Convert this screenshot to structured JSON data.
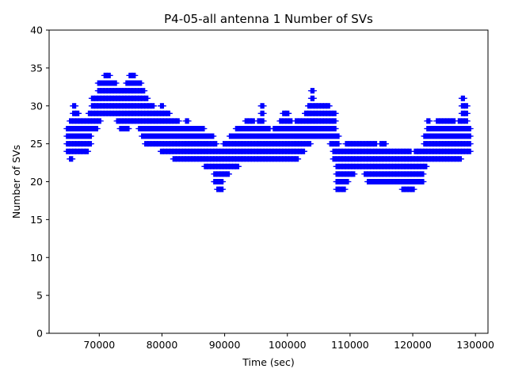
{
  "chart_data": {
    "type": "scatter",
    "title": "P4-05-all antenna 1 Number of SVs",
    "xlabel": "Time (sec)",
    "ylabel": "Number of SVs",
    "xlim": [
      62000,
      132000
    ],
    "ylim": [
      0,
      40
    ],
    "xticks": [
      70000,
      80000,
      90000,
      100000,
      110000,
      120000,
      130000
    ],
    "yticks": [
      0,
      5,
      10,
      15,
      20,
      25,
      30,
      35,
      40
    ],
    "grid": false,
    "marker": "+",
    "color": "#0000ff",
    "series": [
      {
        "x": [
          65000,
          65500,
          66000,
          66500,
          67000,
          67500,
          68000,
          68500,
          69000,
          69500,
          70000,
          70500,
          71000,
          71500,
          72000,
          72500,
          73000,
          73500,
          74000,
          74500,
          75000,
          75500,
          76000,
          76500,
          77000,
          77500,
          78000,
          78500,
          79000,
          79500,
          80000,
          80500,
          81000,
          81500,
          82000,
          82500,
          83000,
          83500,
          84000,
          84500,
          85000,
          85500,
          86000,
          86500,
          87000,
          87500,
          88000,
          88500,
          89000,
          89500,
          90000,
          90500,
          91000,
          91500,
          92000,
          92500,
          93000,
          93500,
          94000,
          94500,
          95000,
          95500,
          96000,
          96500,
          97000,
          97500,
          98000,
          98500,
          99000,
          99500,
          100000,
          100500,
          101000,
          101500,
          102000,
          102500,
          103000,
          103500,
          104000,
          104500,
          105000,
          105500,
          106000,
          106500,
          107000,
          107500,
          108000,
          108500,
          109000,
          109500,
          110000,
          110500,
          111000,
          111500,
          112000,
          112500,
          113000,
          113500,
          114000,
          114500,
          115000,
          115500,
          116000,
          116500,
          117000,
          117500,
          118000,
          118500,
          119000,
          119500,
          120000,
          120500,
          121000,
          121500,
          122000,
          122500,
          123000,
          123500,
          124000,
          124500,
          125000,
          125500,
          126000,
          126500,
          127000,
          127500,
          128000,
          128500,
          129000
        ],
        "y": [
          26,
          26,
          27,
          27,
          26,
          26,
          26,
          27,
          28,
          29,
          30,
          31,
          32,
          32,
          32,
          31,
          30,
          29,
          29,
          30,
          31,
          31,
          31,
          30,
          29,
          28,
          28,
          27,
          27,
          27,
          26,
          27,
          27,
          26,
          26,
          26,
          25,
          25,
          26,
          25,
          25,
          25,
          25,
          25,
          24,
          24,
          24,
          23,
          22,
          22,
          23,
          23,
          24,
          24,
          24,
          25,
          25,
          25,
          26,
          26,
          25,
          25,
          26,
          25,
          25,
          24,
          25,
          25,
          26,
          26,
          26,
          26,
          25,
          25,
          26,
          26,
          27,
          27,
          29,
          28,
          28,
          28,
          28,
          28,
          27,
          27,
          23,
          22,
          22,
          23,
          23,
          24,
          24,
          24,
          24,
          24,
          23,
          23,
          22,
          22,
          23,
          23,
          22,
          22,
          22,
          22,
          22,
          21,
          21,
          21,
          21,
          22,
          22,
          22,
          24,
          25,
          25,
          25,
          26,
          26,
          25,
          25,
          25,
          25,
          25,
          26,
          28,
          27,
          26
        ],
        "low": [
          24,
          23,
          24,
          24,
          24,
          24,
          24,
          25,
          27,
          27,
          28,
          29,
          29,
          29,
          29,
          29,
          28,
          27,
          27,
          27,
          28,
          28,
          28,
          27,
          26,
          25,
          25,
          25,
          25,
          25,
          24,
          24,
          24,
          24,
          23,
          23,
          23,
          23,
          23,
          23,
          23,
          23,
          23,
          23,
          22,
          22,
          22,
          20,
          19,
          19,
          21,
          21,
          22,
          22,
          22,
          23,
          23,
          23,
          23,
          23,
          23,
          23,
          23,
          23,
          23,
          23,
          23,
          23,
          23,
          23,
          23,
          23,
          23,
          23,
          24,
          24,
          25,
          25,
          26,
          26,
          26,
          26,
          26,
          26,
          25,
          23,
          19,
          19,
          19,
          20,
          21,
          21,
          22,
          22,
          22,
          21,
          20,
          20,
          20,
          20,
          20,
          20,
          20,
          20,
          20,
          20,
          20,
          19,
          19,
          19,
          19,
          20,
          20,
          20,
          22,
          23,
          23,
          23,
          23,
          23,
          23,
          23,
          23,
          23,
          23,
          23,
          24,
          24,
          24
        ],
        "high": [
          27,
          28,
          30,
          29,
          28,
          28,
          28,
          29,
          31,
          31,
          33,
          33,
          34,
          34,
          33,
          33,
          32,
          32,
          32,
          33,
          34,
          34,
          33,
          33,
          32,
          31,
          30,
          30,
          29,
          29,
          30,
          29,
          29,
          28,
          28,
          28,
          27,
          27,
          28,
          27,
          27,
          27,
          27,
          27,
          26,
          26,
          26,
          25,
          24,
          24,
          25,
          25,
          26,
          26,
          27,
          27,
          27,
          28,
          28,
          28,
          27,
          28,
          30,
          27,
          27,
          26,
          27,
          27,
          28,
          29,
          29,
          28,
          27,
          28,
          28,
          28,
          29,
          30,
          32,
          30,
          30,
          30,
          30,
          30,
          29,
          29,
          26,
          24,
          24,
          25,
          25,
          25,
          25,
          25,
          25,
          25,
          25,
          25,
          25,
          24,
          25,
          25,
          24,
          24,
          24,
          24,
          24,
          24,
          24,
          24,
          23,
          24,
          24,
          24,
          26,
          28,
          27,
          27,
          28,
          28,
          28,
          28,
          28,
          28,
          27,
          28,
          31,
          30,
          27
        ]
      }
    ]
  }
}
